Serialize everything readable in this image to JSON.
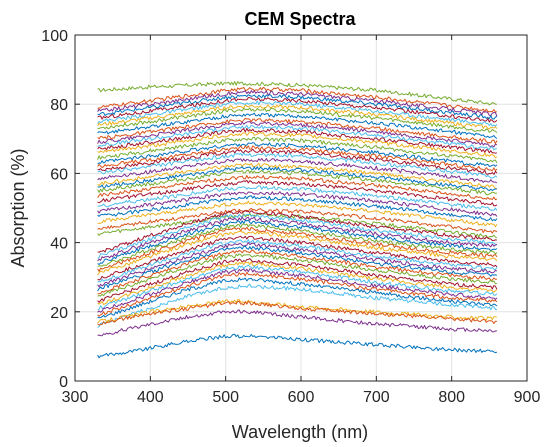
{
  "chart_data": {
    "type": "line",
    "title": "CEM Spectra",
    "xlabel": "Wavelength (nm)",
    "ylabel": "Absorption (%)",
    "xlim": [
      300,
      900
    ],
    "ylim": [
      0,
      100
    ],
    "xticks": [
      300,
      400,
      500,
      600,
      700,
      800,
      900
    ],
    "yticks": [
      0,
      20,
      40,
      60,
      80,
      100
    ],
    "grid": true,
    "legend": "none",
    "x": [
      330,
      400,
      450,
      500,
      530,
      600,
      700,
      800,
      860
    ],
    "series": [
      {
        "color": "#77AC30",
        "values": [
          84,
          85,
          85.5,
          86,
          86,
          85.5,
          84,
          81.5,
          80
        ]
      },
      {
        "color": "#D95319",
        "values": [
          79,
          81,
          82.5,
          84,
          84.5,
          84,
          82,
          79.5,
          78
        ]
      },
      {
        "color": "#7E2F8E",
        "values": [
          78,
          80,
          81.5,
          83,
          83.5,
          83,
          81,
          78.5,
          77
        ]
      },
      {
        "color": "#0072BD",
        "values": [
          77,
          79,
          80.5,
          82,
          82.5,
          82,
          80,
          77.5,
          76
        ]
      },
      {
        "color": "#A2142F",
        "values": [
          76,
          78,
          79.5,
          81,
          81.5,
          81,
          79,
          76.5,
          75
        ]
      },
      {
        "color": "#4DBEEE",
        "values": [
          75,
          77,
          78.5,
          80,
          80.5,
          80,
          78,
          75.5,
          74
        ]
      },
      {
        "color": "#EDB120",
        "values": [
          74,
          76,
          77.5,
          79,
          79.5,
          79,
          77,
          74.5,
          73
        ]
      },
      {
        "color": "#77AC30",
        "values": [
          73,
          75,
          76.5,
          78,
          78.5,
          78,
          76,
          73.5,
          72
        ]
      },
      {
        "color": "#0072BD",
        "values": [
          71.5,
          73.5,
          75,
          76.5,
          77,
          76.5,
          74.5,
          72,
          70.5
        ]
      },
      {
        "color": "#D95319",
        "values": [
          70,
          72,
          73.5,
          75,
          75.5,
          75,
          73,
          70.5,
          69
        ]
      },
      {
        "color": "#7E2F8E",
        "values": [
          69,
          71,
          72.5,
          74,
          74.5,
          74,
          72,
          69.5,
          68
        ]
      },
      {
        "color": "#4DBEEE",
        "values": [
          68,
          70,
          71.5,
          73,
          73.5,
          73,
          71,
          68.5,
          67
        ]
      },
      {
        "color": "#A2142F",
        "values": [
          67,
          69,
          70.5,
          72,
          72.5,
          72,
          70,
          67.5,
          66
        ]
      },
      {
        "color": "#EDB120",
        "values": [
          66,
          68,
          69.5,
          71,
          71.5,
          71,
          69,
          66.5,
          65
        ]
      },
      {
        "color": "#77AC30",
        "values": [
          64.5,
          66.5,
          68,
          69.5,
          70,
          69.5,
          67.5,
          65,
          63.5
        ]
      },
      {
        "color": "#0072BD",
        "values": [
          63,
          65,
          66.5,
          68,
          68.5,
          68,
          66,
          63.5,
          62
        ]
      },
      {
        "color": "#D95319",
        "values": [
          62,
          64,
          65.5,
          67,
          67.5,
          67,
          65,
          62.5,
          61
        ]
      },
      {
        "color": "#A2142F",
        "values": [
          61,
          63,
          64.5,
          66,
          66.5,
          66,
          64,
          61.5,
          60
        ]
      },
      {
        "color": "#4DBEEE",
        "values": [
          60,
          62,
          63.5,
          65,
          65.5,
          65,
          63,
          60.5,
          59
        ]
      },
      {
        "color": "#7E2F8E",
        "values": [
          58.5,
          60.5,
          62,
          63.5,
          64,
          63.5,
          61.5,
          59,
          57.5
        ]
      },
      {
        "color": "#EDB120",
        "values": [
          57,
          59,
          60.5,
          62,
          62.5,
          62,
          60,
          57.5,
          56
        ]
      },
      {
        "color": "#0072BD",
        "values": [
          56,
          58,
          59.5,
          61,
          61.5,
          61,
          59,
          56.5,
          55
        ]
      },
      {
        "color": "#77AC30",
        "values": [
          55,
          57,
          58.5,
          60,
          60.5,
          60,
          58,
          55.5,
          54
        ]
      },
      {
        "color": "#D95319",
        "values": [
          53.5,
          55.5,
          57,
          58.5,
          59,
          58.5,
          56.5,
          54,
          52.5
        ]
      },
      {
        "color": "#A2142F",
        "values": [
          52,
          54,
          55.5,
          57,
          57.5,
          57,
          55,
          52.5,
          51
        ]
      },
      {
        "color": "#4DBEEE",
        "values": [
          50.5,
          52.5,
          54,
          55.5,
          56,
          55.5,
          53.5,
          51,
          49.5
        ]
      },
      {
        "color": "#7E2F8E",
        "values": [
          49,
          51,
          52.5,
          54,
          54.5,
          54,
          52,
          49.5,
          48
        ]
      },
      {
        "color": "#0072BD",
        "values": [
          47.5,
          49.5,
          51,
          52.5,
          53,
          52.5,
          50.5,
          48,
          46.5
        ]
      },
      {
        "color": "#EDB120",
        "values": [
          46,
          48,
          49.5,
          51,
          51.5,
          51,
          49,
          46.5,
          45
        ]
      },
      {
        "color": "#D95319",
        "values": [
          44,
          46,
          47.5,
          49,
          49.5,
          49,
          47,
          44.5,
          43
        ]
      },
      {
        "color": "#77AC30",
        "values": [
          42.5,
          44.5,
          46,
          47.5,
          48,
          47.5,
          45.5,
          43,
          41.5
        ]
      },
      {
        "color": "#A2142F",
        "values": [
          37,
          42,
          45.5,
          48.5,
          49,
          47.5,
          44.5,
          42,
          41
        ]
      },
      {
        "color": "#4DBEEE",
        "values": [
          36,
          41,
          44.5,
          47.5,
          48,
          46.5,
          43.5,
          41,
          40
        ]
      },
      {
        "color": "#7E2F8E",
        "values": [
          35,
          40,
          43.5,
          46.5,
          47,
          45.5,
          42.5,
          40,
          39
        ]
      },
      {
        "color": "#0072BD",
        "values": [
          34,
          39,
          42.5,
          45.5,
          46,
          44.5,
          41.5,
          39,
          38
        ]
      },
      {
        "color": "#77AC30",
        "values": [
          33,
          38,
          41.5,
          44.5,
          45,
          43.5,
          40.5,
          38,
          37
        ]
      },
      {
        "color": "#D95319",
        "values": [
          32,
          37,
          40.5,
          43.5,
          44,
          42.5,
          39.5,
          37,
          36
        ]
      },
      {
        "color": "#EDB120",
        "values": [
          31,
          36,
          39.5,
          42.5,
          43,
          41.5,
          38.5,
          36,
          35
        ]
      },
      {
        "color": "#A2142F",
        "values": [
          29.5,
          34.5,
          38,
          41,
          41.5,
          40,
          37,
          34.5,
          33.5
        ]
      },
      {
        "color": "#4DBEEE",
        "values": [
          28.5,
          33.5,
          37,
          40,
          40.5,
          39,
          36,
          33.5,
          32.5
        ]
      },
      {
        "color": "#7E2F8E",
        "values": [
          27.5,
          32.5,
          36,
          39,
          39.5,
          38,
          35,
          32.5,
          31.5
        ]
      },
      {
        "color": "#0072BD",
        "values": [
          26.5,
          31.5,
          35,
          38,
          38.5,
          37,
          34,
          31.5,
          30.5
        ]
      },
      {
        "color": "#D95319",
        "values": [
          25.5,
          30.5,
          34,
          37,
          37.5,
          36,
          33,
          30.5,
          29.5
        ]
      },
      {
        "color": "#77AC30",
        "values": [
          24.5,
          29.5,
          33,
          36,
          36.5,
          35,
          32,
          29.5,
          28.5
        ]
      },
      {
        "color": "#A2142F",
        "values": [
          23,
          28,
          31.5,
          34.5,
          35,
          33.5,
          30.5,
          28,
          27
        ]
      },
      {
        "color": "#EDB120",
        "values": [
          22,
          27,
          30.5,
          33.5,
          34,
          32.5,
          29.5,
          27,
          26
        ]
      },
      {
        "color": "#4DBEEE",
        "values": [
          21,
          26,
          29.5,
          32.5,
          33,
          31.5,
          28.5,
          26,
          25
        ]
      },
      {
        "color": "#7E2F8E",
        "values": [
          20,
          25,
          28.5,
          31.5,
          32,
          30.5,
          27.5,
          25,
          24
        ]
      },
      {
        "color": "#D95319",
        "values": [
          19,
          24,
          27.5,
          30.5,
          31,
          29.5,
          26.5,
          24,
          23
        ]
      },
      {
        "color": "#0072BD",
        "values": [
          18,
          23,
          26.5,
          29,
          29.5,
          28,
          25.5,
          23,
          22
        ]
      },
      {
        "color": "#4DBEEE",
        "values": [
          16,
          21,
          24.5,
          27,
          27.5,
          26.5,
          24,
          22,
          21
        ]
      },
      {
        "color": "#EDB120",
        "values": [
          17,
          20,
          21.5,
          23,
          23,
          21.5,
          20,
          18.5,
          18
        ]
      },
      {
        "color": "#D95319",
        "values": [
          16.5,
          19.5,
          21,
          22.5,
          22.5,
          21,
          19.5,
          18,
          17
        ]
      },
      {
        "color": "#7E2F8E",
        "values": [
          13,
          16.5,
          18.5,
          20,
          20,
          18.5,
          16.5,
          15,
          14.5
        ]
      },
      {
        "color": "#0072BD",
        "values": [
          7,
          9.5,
          11.5,
          13,
          13,
          12,
          10.5,
          9,
          8.5
        ]
      }
    ]
  }
}
